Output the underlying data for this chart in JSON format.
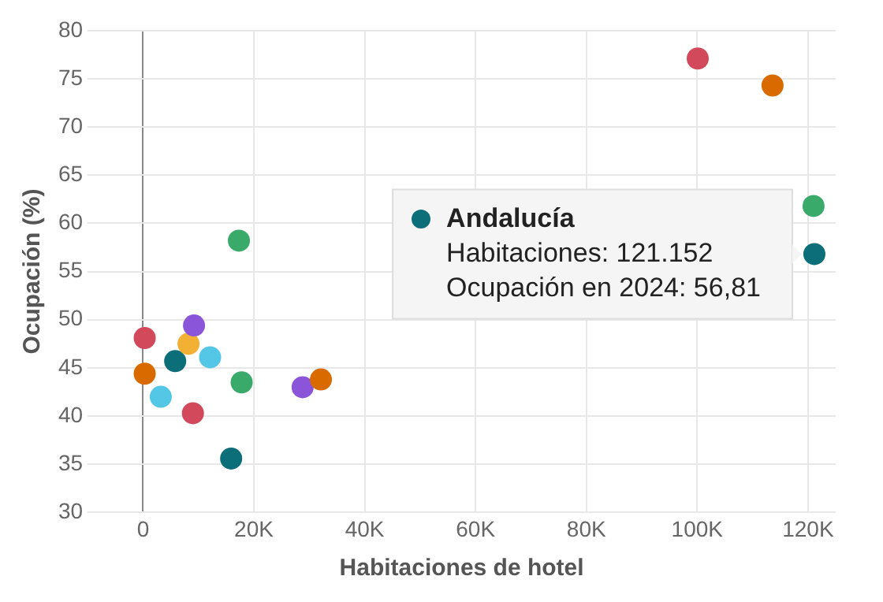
{
  "chart_data": {
    "type": "scatter",
    "xlabel": "Habitaciones de hotel",
    "ylabel": "Ocupación (%)",
    "x": [
      300,
      300,
      5800,
      8200,
      9200,
      12100,
      3200,
      9000,
      17300,
      17800,
      15900,
      28800,
      32100,
      100100,
      113600,
      121000,
      121152
    ],
    "values": [
      48.1,
      44.4,
      45.7,
      47.5,
      49.4,
      46.1,
      42.0,
      40.3,
      58.2,
      43.5,
      35.6,
      43.0,
      43.8,
      77.1,
      74.3,
      61.8,
      56.81
    ],
    "colors": [
      "#d1495b",
      "#d96a00",
      "#0b6e79",
      "#f2b134",
      "#8a55d8",
      "#55c7e6",
      "#55c7e6",
      "#d1495b",
      "#3aaa6a",
      "#3aaa6a",
      "#0b6e79",
      "#8a55d8",
      "#d96a00",
      "#d1495b",
      "#d96a00",
      "#3aaa6a",
      "#0b6e79"
    ],
    "xlim": [
      -10000,
      125000
    ],
    "xticks": [
      0,
      {
        "value": 20000,
        "label": "20K"
      },
      {
        "value": 40000,
        "label": "40K"
      },
      {
        "value": 60000,
        "label": "60K"
      },
      {
        "value": 80000,
        "label": "80K"
      },
      {
        "value": 100000,
        "label": "100K"
      },
      {
        "value": 120000,
        "label": "120K"
      }
    ],
    "ylim": [
      30,
      80
    ],
    "yticks": [
      30,
      35,
      40,
      45,
      50,
      55,
      60,
      65,
      70,
      75,
      80
    ],
    "grid": true,
    "legend": false,
    "marker": "circle",
    "annotations": [
      {
        "text": "Andalucía\nHabitaciones: 121.152\nOcupación en 2024: 56,81",
        "x": 121152,
        "y": 56.81
      }
    ]
  }
}
